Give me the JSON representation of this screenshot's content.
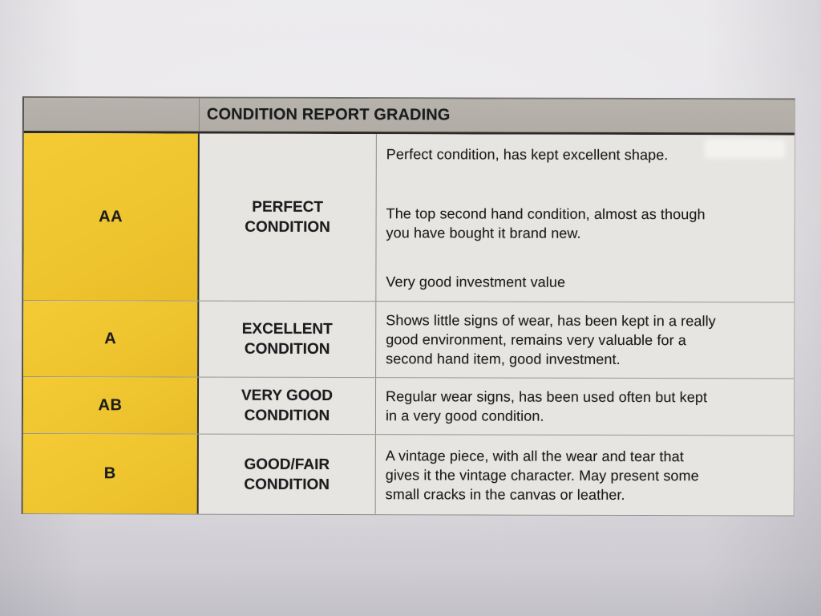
{
  "document": {
    "title": "CONDITION REPORT GRADING",
    "table": {
      "rows": [
        {
          "grade": "AA",
          "label_lines": [
            "PERFECT",
            "CONDITION"
          ],
          "label": "PERFECT CONDITION",
          "paragraphs": [
            [
              "Perfect condition, has kept excellent shape."
            ],
            [
              "The top second hand condition, almost as though",
              "you have bought it brand new."
            ],
            [
              "Very good investment value"
            ]
          ]
        },
        {
          "grade": "A",
          "label_lines": [
            "EXCELLENT",
            "CONDITION"
          ],
          "label": "EXCELLENT CONDITION",
          "paragraphs": [
            [
              "Shows little signs of wear, has been kept in a really",
              "good environment, remains very valuable for a",
              "second hand item, good investment."
            ]
          ]
        },
        {
          "grade": "AB",
          "label_lines": [
            "VERY GOOD",
            "CONDITION"
          ],
          "label": "VERY GOOD CONDITION",
          "paragraphs": [
            [
              "Regular wear signs, has been used often but kept",
              "in a very good condition."
            ]
          ]
        },
        {
          "grade": "B",
          "label_lines": [
            "GOOD/FAIR",
            "CONDITION"
          ],
          "label": "GOOD/FAIR CONDITION",
          "paragraphs": [
            [
              "A vintage piece, with all the wear and tear that",
              "gives it the vintage character. May present some",
              "small cracks in the canvas or leather."
            ]
          ]
        }
      ]
    },
    "colors": {
      "paper": "#E4E2E6",
      "header_gray": "#B3AFA8",
      "cell_gray": "#E7E5E1",
      "grade_yellow": "#F0C730",
      "divider_dark": "#2B2A28",
      "text": "#1C1C1E"
    }
  }
}
